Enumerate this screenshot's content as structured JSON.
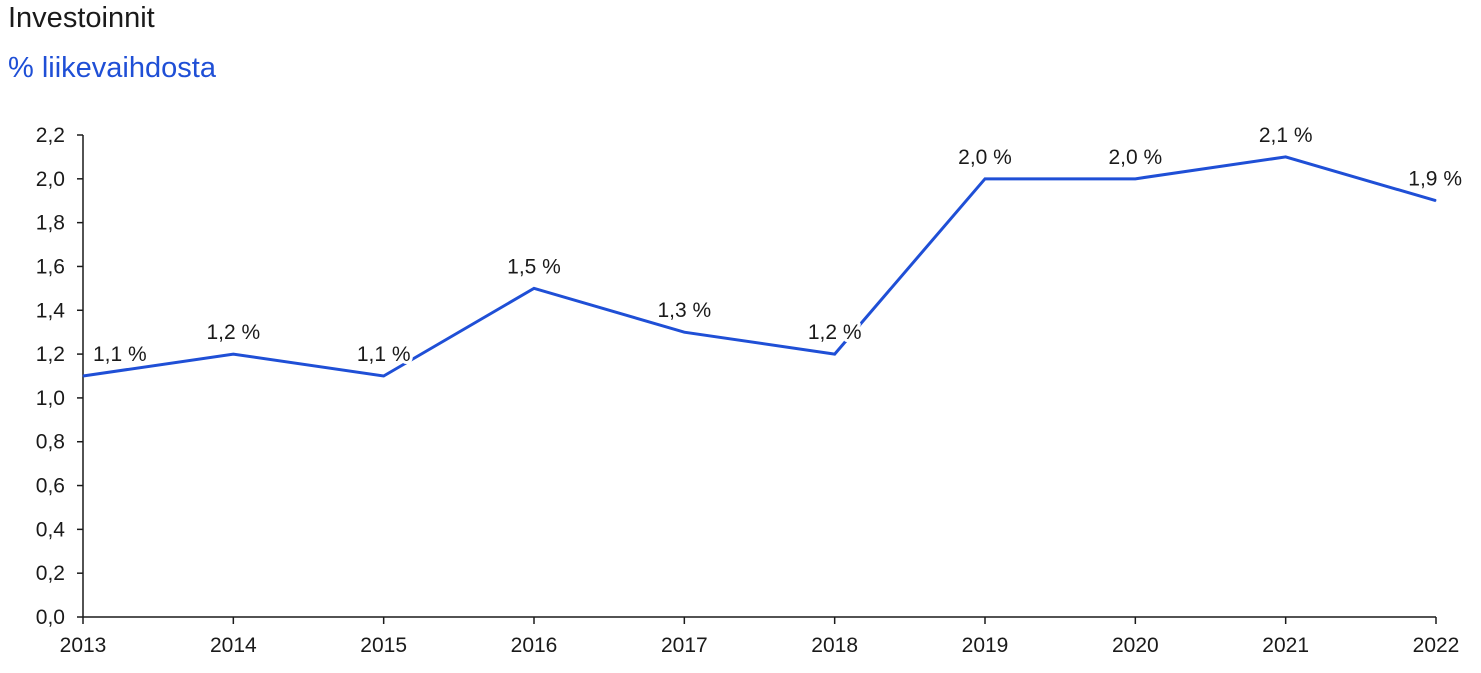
{
  "header": {
    "title": "Investoinnit",
    "subtitle": "% liikevaihdosta"
  },
  "colors": {
    "series": "#1f4fd6",
    "axis": "#1a1a1a",
    "text": "#1a1a1a"
  },
  "chart_data": {
    "type": "line",
    "title": "Investoinnit",
    "subtitle": "% liikevaihdosta",
    "xlabel": "",
    "ylabel": "",
    "categories": [
      "2013",
      "2014",
      "2015",
      "2016",
      "2017",
      "2018",
      "2019",
      "2020",
      "2021",
      "2022"
    ],
    "series": [
      {
        "values": [
          1.1,
          1.2,
          1.1,
          1.5,
          1.3,
          1.2,
          2.0,
          2.0,
          2.1,
          1.9
        ],
        "labels": [
          "1,1 %",
          "1,2 %",
          "1,1 %",
          "1,5 %",
          "1,3 %",
          "1,2 %",
          "2,0 %",
          "2,0 %",
          "2,1 %",
          "1,9 %"
        ]
      }
    ],
    "ylim": [
      0,
      2.2
    ],
    "yticks": [
      "0,0",
      "0,2",
      "0,4",
      "0,6",
      "0,8",
      "1,0",
      "1,2",
      "1,4",
      "1,6",
      "1,8",
      "2,0",
      "2,2"
    ],
    "grid": false,
    "legend": "none"
  }
}
